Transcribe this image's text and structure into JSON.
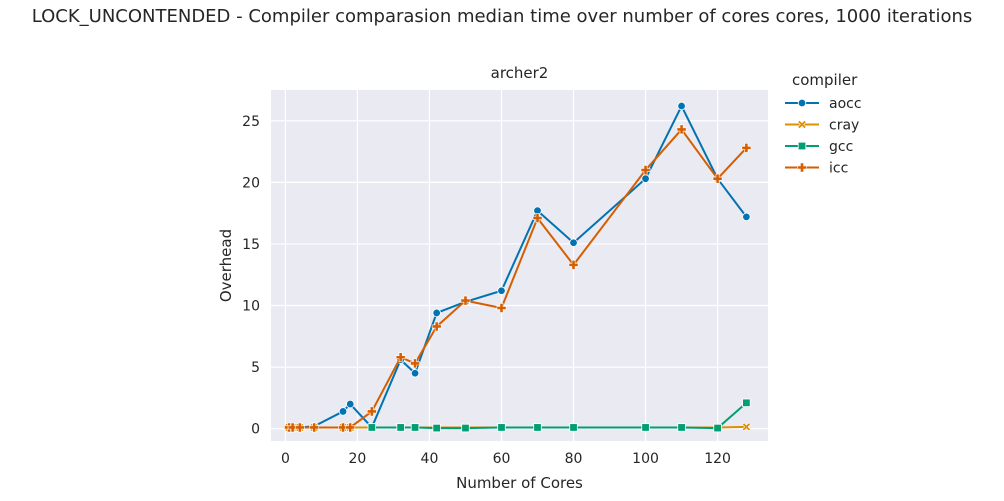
{
  "page": {
    "title": "LOCK_UNCONTENDED - Compiler comparasion median time over number of cores cores, 1000 iterations"
  },
  "chart_data": {
    "type": "line",
    "title": "archer2",
    "xlabel": "Number of Cores",
    "ylabel": "Overhead",
    "xlim": [
      -4,
      134
    ],
    "ylim": [
      -1,
      27.5
    ],
    "xticks": [
      0,
      20,
      40,
      60,
      80,
      100,
      120
    ],
    "yticks": [
      0,
      5,
      10,
      15,
      20,
      25
    ],
    "grid": true,
    "legend": {
      "title": "compiler",
      "placement": "outside-right"
    },
    "series": [
      {
        "name": "aocc",
        "color": "#0173b2",
        "marker": "circle",
        "x": [
          1,
          2,
          4,
          8,
          16,
          18,
          24,
          32,
          36,
          42,
          50,
          60,
          70,
          80,
          100,
          110,
          120,
          128
        ],
        "y": [
          0.1,
          0.1,
          0.1,
          0.2,
          1.4,
          2.0,
          0.1,
          5.6,
          4.5,
          9.4,
          10.3,
          11.2,
          17.7,
          15.1,
          20.3,
          26.2,
          20.3,
          17.2
        ]
      },
      {
        "name": "cray",
        "color": "#de8f05",
        "marker": "x",
        "x": [
          1,
          2,
          4,
          8,
          16,
          18,
          24,
          32,
          36,
          42,
          50,
          60,
          70,
          80,
          100,
          110,
          120,
          128
        ],
        "y": [
          0.1,
          0.1,
          0.1,
          0.1,
          0.1,
          0.1,
          0.1,
          0.1,
          0.1,
          0.1,
          0.1,
          0.1,
          0.1,
          0.1,
          0.1,
          0.1,
          0.1,
          0.15
        ]
      },
      {
        "name": "gcc",
        "color": "#029e73",
        "marker": "square",
        "x": [
          24,
          32,
          36,
          42,
          50,
          60,
          70,
          80,
          100,
          110,
          120,
          128
        ],
        "y": [
          0.1,
          0.1,
          0.1,
          0.05,
          0.05,
          0.1,
          0.1,
          0.1,
          0.1,
          0.1,
          0.05,
          2.1
        ]
      },
      {
        "name": "icc",
        "color": "#d55e00",
        "marker": "plus",
        "x": [
          1,
          2,
          4,
          8,
          16,
          18,
          24,
          32,
          36,
          42,
          50,
          60,
          70,
          80,
          100,
          110,
          120,
          128
        ],
        "y": [
          0.1,
          0.1,
          0.1,
          0.1,
          0.1,
          0.1,
          1.4,
          5.8,
          5.3,
          8.3,
          10.4,
          9.8,
          17.1,
          13.3,
          21.0,
          24.3,
          20.3,
          22.8
        ]
      }
    ]
  }
}
